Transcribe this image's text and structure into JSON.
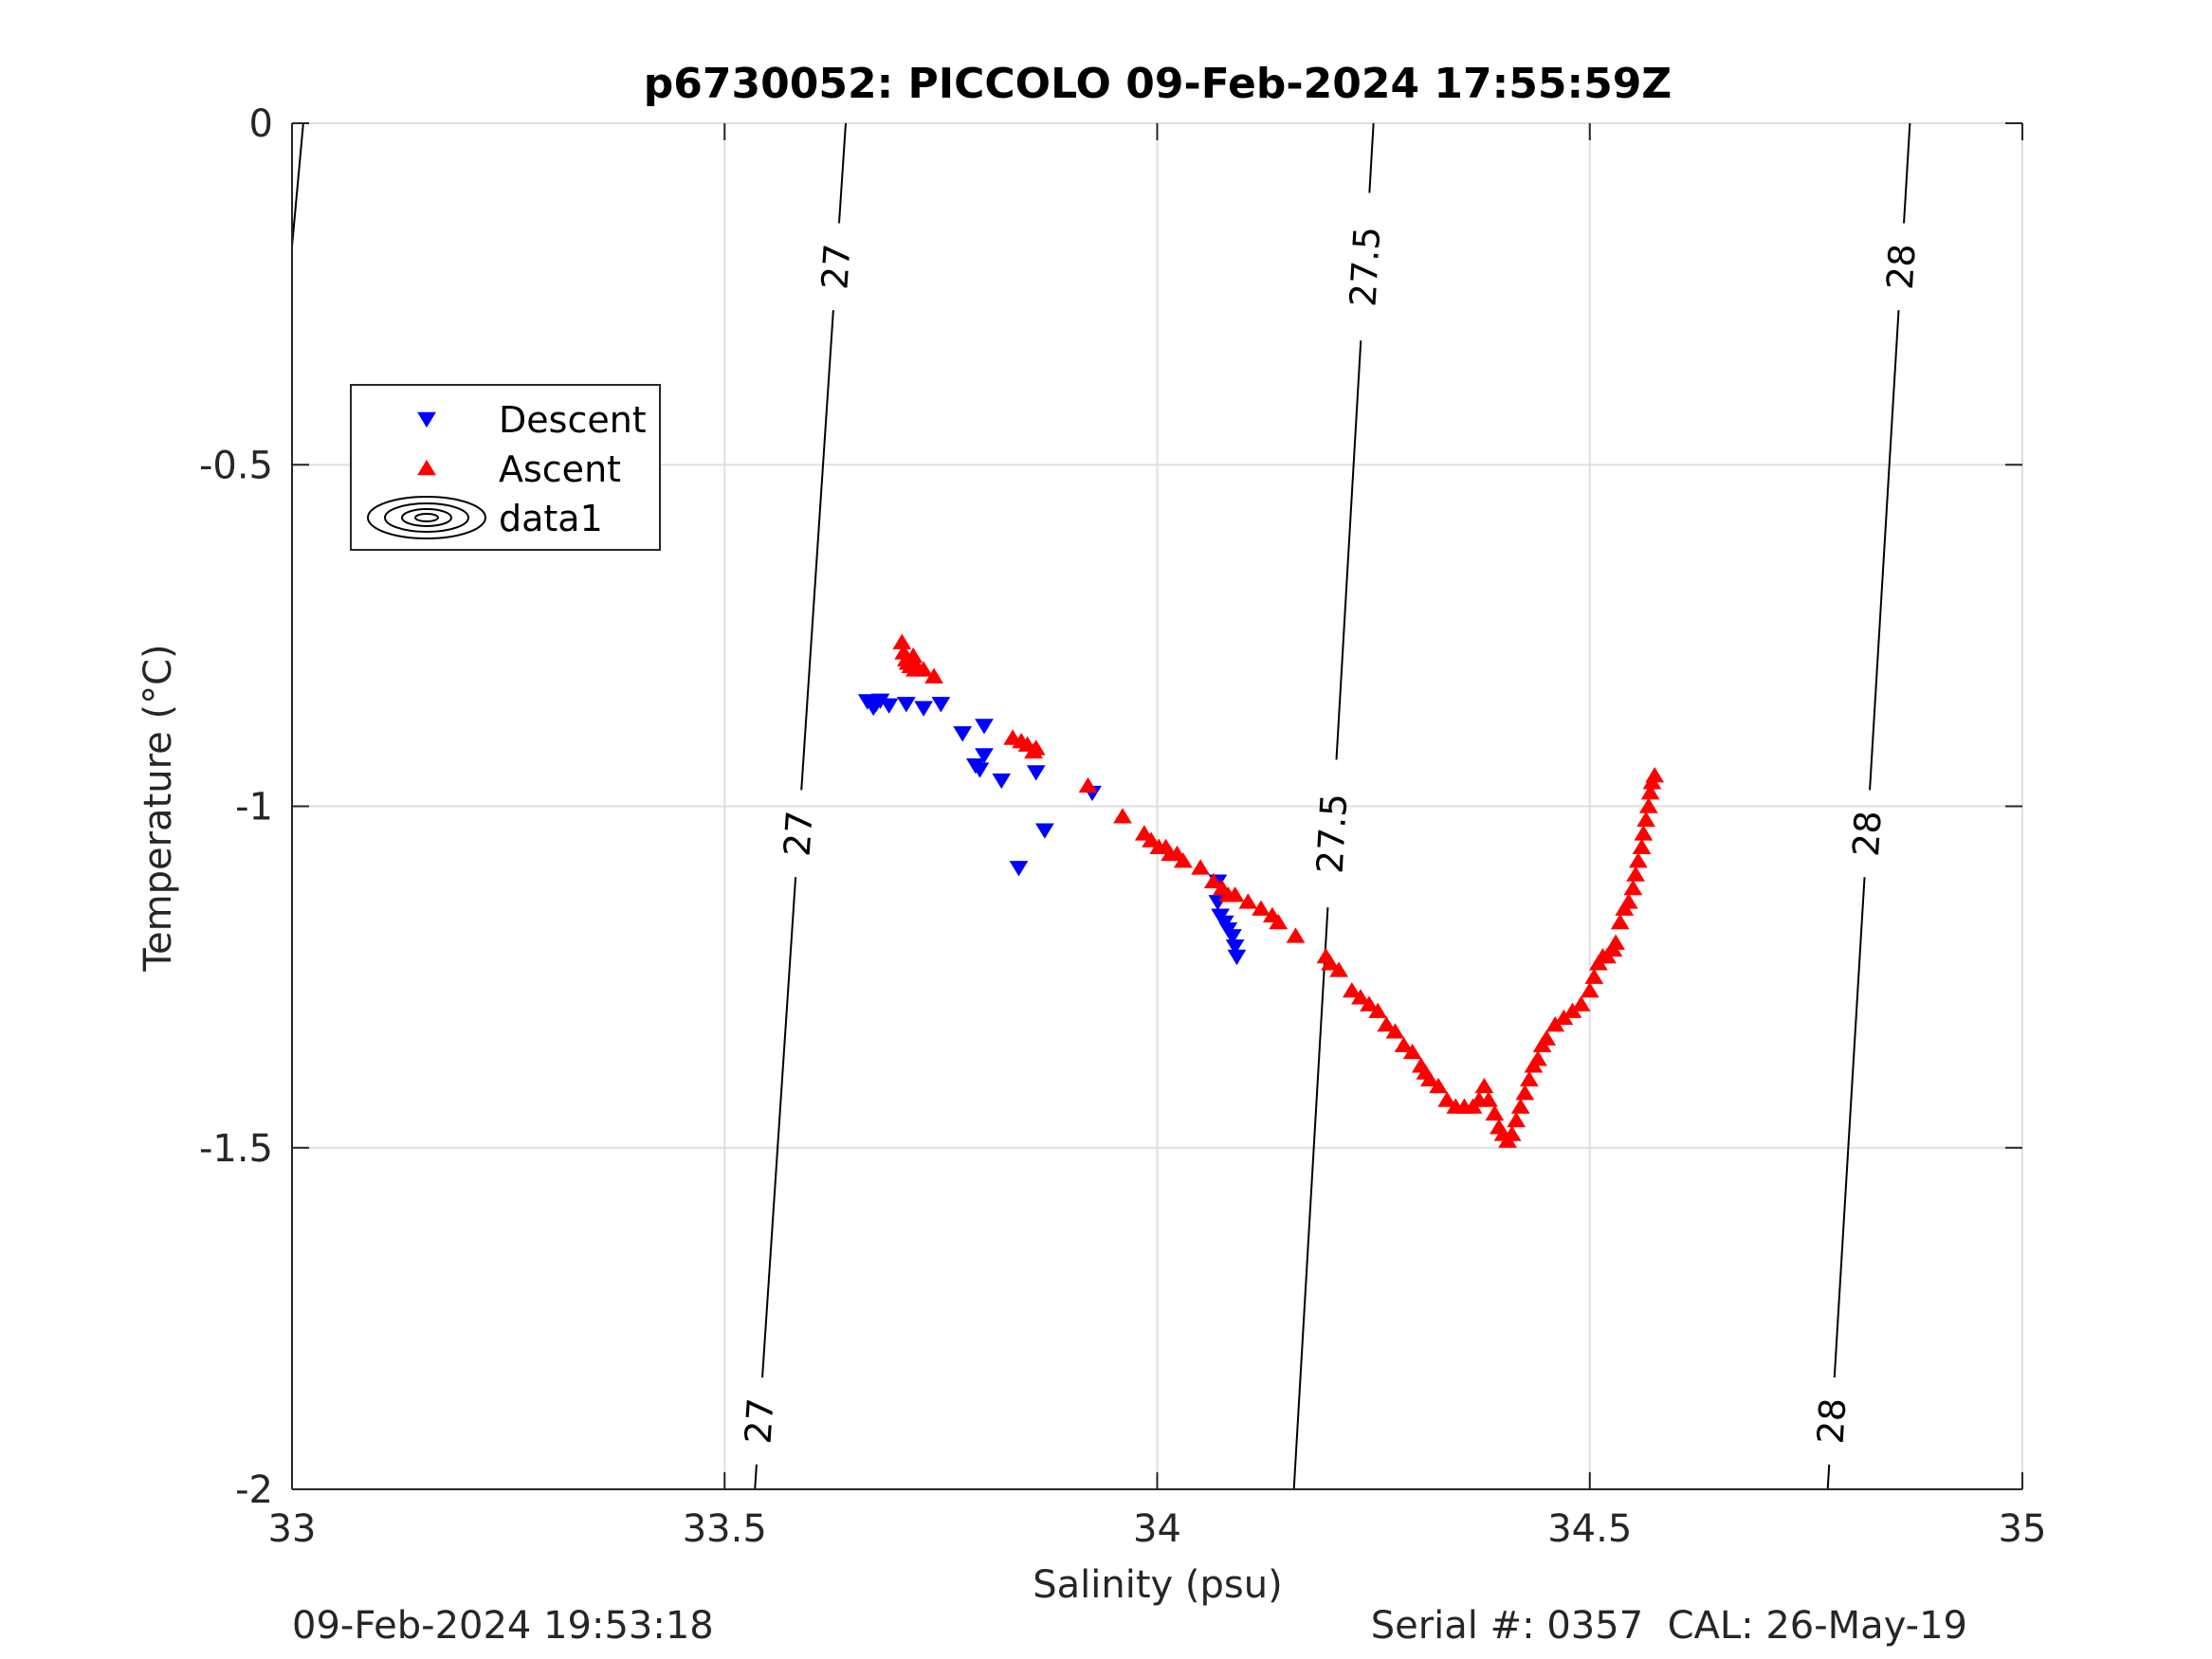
{
  "chart_data": {
    "type": "scatter",
    "title": "p6730052: PICCOLO 09-Feb-2024 17:55:59Z",
    "xlabel": "Salinity (psu)",
    "ylabel": "Temperature (°C)",
    "xlim": [
      33,
      35
    ],
    "ylim": [
      -2,
      0
    ],
    "xticks": [
      "33",
      "33.5",
      "34",
      "34.5",
      "35"
    ],
    "yticks": [
      "0",
      "-0.5",
      "-1",
      "-1.5",
      "-2"
    ],
    "grid": true,
    "legend_position": "upper-left",
    "legend": [
      "Descent",
      "Ascent",
      "data1"
    ],
    "contours": [
      {
        "level": "27",
        "line": [
          [
            33.64,
            0
          ],
          [
            33.535,
            -2
          ]
        ],
        "labels_y": [
          -0.21,
          -1.04,
          -1.9
        ]
      },
      {
        "level": "27.5",
        "line": [
          [
            34.25,
            0
          ],
          [
            34.158,
            -2
          ]
        ],
        "labels_y": [
          -0.21,
          -1.04
        ]
      },
      {
        "level": "28",
        "line": [
          [
            34.87,
            0
          ],
          [
            34.775,
            -2
          ]
        ],
        "labels_y": [
          -0.21,
          -1.04,
          -1.9
        ]
      }
    ],
    "extra_contour_fragment": [
      [
        33.013,
        0
      ],
      [
        33.0,
        -0.18
      ]
    ],
    "series": [
      {
        "name": "Descent",
        "marker": "triangle-down",
        "color": "#0000ff",
        "points": [
          [
            33.665,
            -0.846
          ],
          [
            33.67,
            -0.848
          ],
          [
            33.675,
            -0.85
          ],
          [
            33.68,
            -0.845
          ],
          [
            33.672,
            -0.855
          ],
          [
            33.69,
            -0.852
          ],
          [
            33.71,
            -0.85
          ],
          [
            33.73,
            -0.856
          ],
          [
            33.75,
            -0.85
          ],
          [
            33.775,
            -0.893
          ],
          [
            33.79,
            -0.94
          ],
          [
            33.795,
            -0.946
          ],
          [
            33.8,
            -0.925
          ],
          [
            33.8,
            -0.882
          ],
          [
            33.82,
            -0.962
          ],
          [
            33.84,
            -1.09
          ],
          [
            33.86,
            -0.95
          ],
          [
            33.87,
            -1.035
          ],
          [
            33.925,
            -0.98
          ],
          [
            34.07,
            -1.11
          ],
          [
            34.07,
            -1.14
          ],
          [
            34.073,
            -1.16
          ],
          [
            34.078,
            -1.17
          ],
          [
            34.082,
            -1.18
          ],
          [
            34.087,
            -1.19
          ],
          [
            34.09,
            -1.205
          ],
          [
            34.092,
            -1.22
          ]
        ]
      },
      {
        "name": "Ascent",
        "marker": "triangle-up",
        "color": "#ff0000",
        "points": [
          [
            33.705,
            -0.76
          ],
          [
            33.707,
            -0.775
          ],
          [
            33.71,
            -0.785
          ],
          [
            33.712,
            -0.79
          ],
          [
            33.715,
            -0.795
          ],
          [
            33.718,
            -0.78
          ],
          [
            33.72,
            -0.8
          ],
          [
            33.722,
            -0.795
          ],
          [
            33.73,
            -0.8
          ],
          [
            33.742,
            -0.81
          ],
          [
            33.833,
            -0.9
          ],
          [
            33.843,
            -0.905
          ],
          [
            33.85,
            -0.91
          ],
          [
            33.857,
            -0.92
          ],
          [
            33.86,
            -0.915
          ],
          [
            33.92,
            -0.97
          ],
          [
            33.96,
            -1.015
          ],
          [
            33.985,
            -1.04
          ],
          [
            33.993,
            -1.05
          ],
          [
            34.002,
            -1.06
          ],
          [
            34.01,
            -1.06
          ],
          [
            34.015,
            -1.07
          ],
          [
            34.023,
            -1.07
          ],
          [
            34.03,
            -1.08
          ],
          [
            34.05,
            -1.09
          ],
          [
            34.065,
            -1.11
          ],
          [
            34.075,
            -1.12
          ],
          [
            34.082,
            -1.13
          ],
          [
            34.09,
            -1.13
          ],
          [
            34.105,
            -1.14
          ],
          [
            34.12,
            -1.15
          ],
          [
            34.133,
            -1.16
          ],
          [
            34.14,
            -1.17
          ],
          [
            34.16,
            -1.19
          ],
          [
            34.195,
            -1.22
          ],
          [
            34.2,
            -1.23
          ],
          [
            34.21,
            -1.24
          ],
          [
            34.225,
            -1.27
          ],
          [
            34.235,
            -1.28
          ],
          [
            34.245,
            -1.29
          ],
          [
            34.255,
            -1.3
          ],
          [
            34.265,
            -1.32
          ],
          [
            34.275,
            -1.33
          ],
          [
            34.285,
            -1.35
          ],
          [
            34.295,
            -1.36
          ],
          [
            34.305,
            -1.38
          ],
          [
            34.31,
            -1.39
          ],
          [
            34.315,
            -1.4
          ],
          [
            34.325,
            -1.41
          ],
          [
            34.335,
            -1.43
          ],
          [
            34.345,
            -1.44
          ],
          [
            34.355,
            -1.44
          ],
          [
            34.365,
            -1.44
          ],
          [
            34.372,
            -1.43
          ],
          [
            34.378,
            -1.41
          ],
          [
            34.383,
            -1.43
          ],
          [
            34.39,
            -1.45
          ],
          [
            34.395,
            -1.47
          ],
          [
            34.4,
            -1.48
          ],
          [
            34.405,
            -1.49
          ],
          [
            34.41,
            -1.48
          ],
          [
            34.415,
            -1.46
          ],
          [
            34.42,
            -1.44
          ],
          [
            34.425,
            -1.42
          ],
          [
            34.43,
            -1.4
          ],
          [
            34.435,
            -1.38
          ],
          [
            34.44,
            -1.37
          ],
          [
            34.445,
            -1.35
          ],
          [
            34.45,
            -1.34
          ],
          [
            34.46,
            -1.32
          ],
          [
            34.47,
            -1.31
          ],
          [
            34.48,
            -1.3
          ],
          [
            34.49,
            -1.29
          ],
          [
            34.5,
            -1.27
          ],
          [
            34.505,
            -1.25
          ],
          [
            34.51,
            -1.23
          ],
          [
            34.515,
            -1.22
          ],
          [
            34.52,
            -1.22
          ],
          [
            34.527,
            -1.21
          ],
          [
            34.53,
            -1.2
          ],
          [
            34.535,
            -1.17
          ],
          [
            34.54,
            -1.15
          ],
          [
            34.545,
            -1.14
          ],
          [
            34.55,
            -1.12
          ],
          [
            34.553,
            -1.1
          ],
          [
            34.556,
            -1.08
          ],
          [
            34.56,
            -1.06
          ],
          [
            34.562,
            -1.04
          ],
          [
            34.565,
            -1.02
          ],
          [
            34.568,
            -1.0
          ],
          [
            34.57,
            -0.98
          ],
          [
            34.572,
            -0.965
          ],
          [
            34.575,
            -0.955
          ]
        ]
      }
    ]
  },
  "footer": {
    "left": "09-Feb-2024 19:53:18",
    "right": "Serial #: 0357  CAL: 26-May-19"
  }
}
